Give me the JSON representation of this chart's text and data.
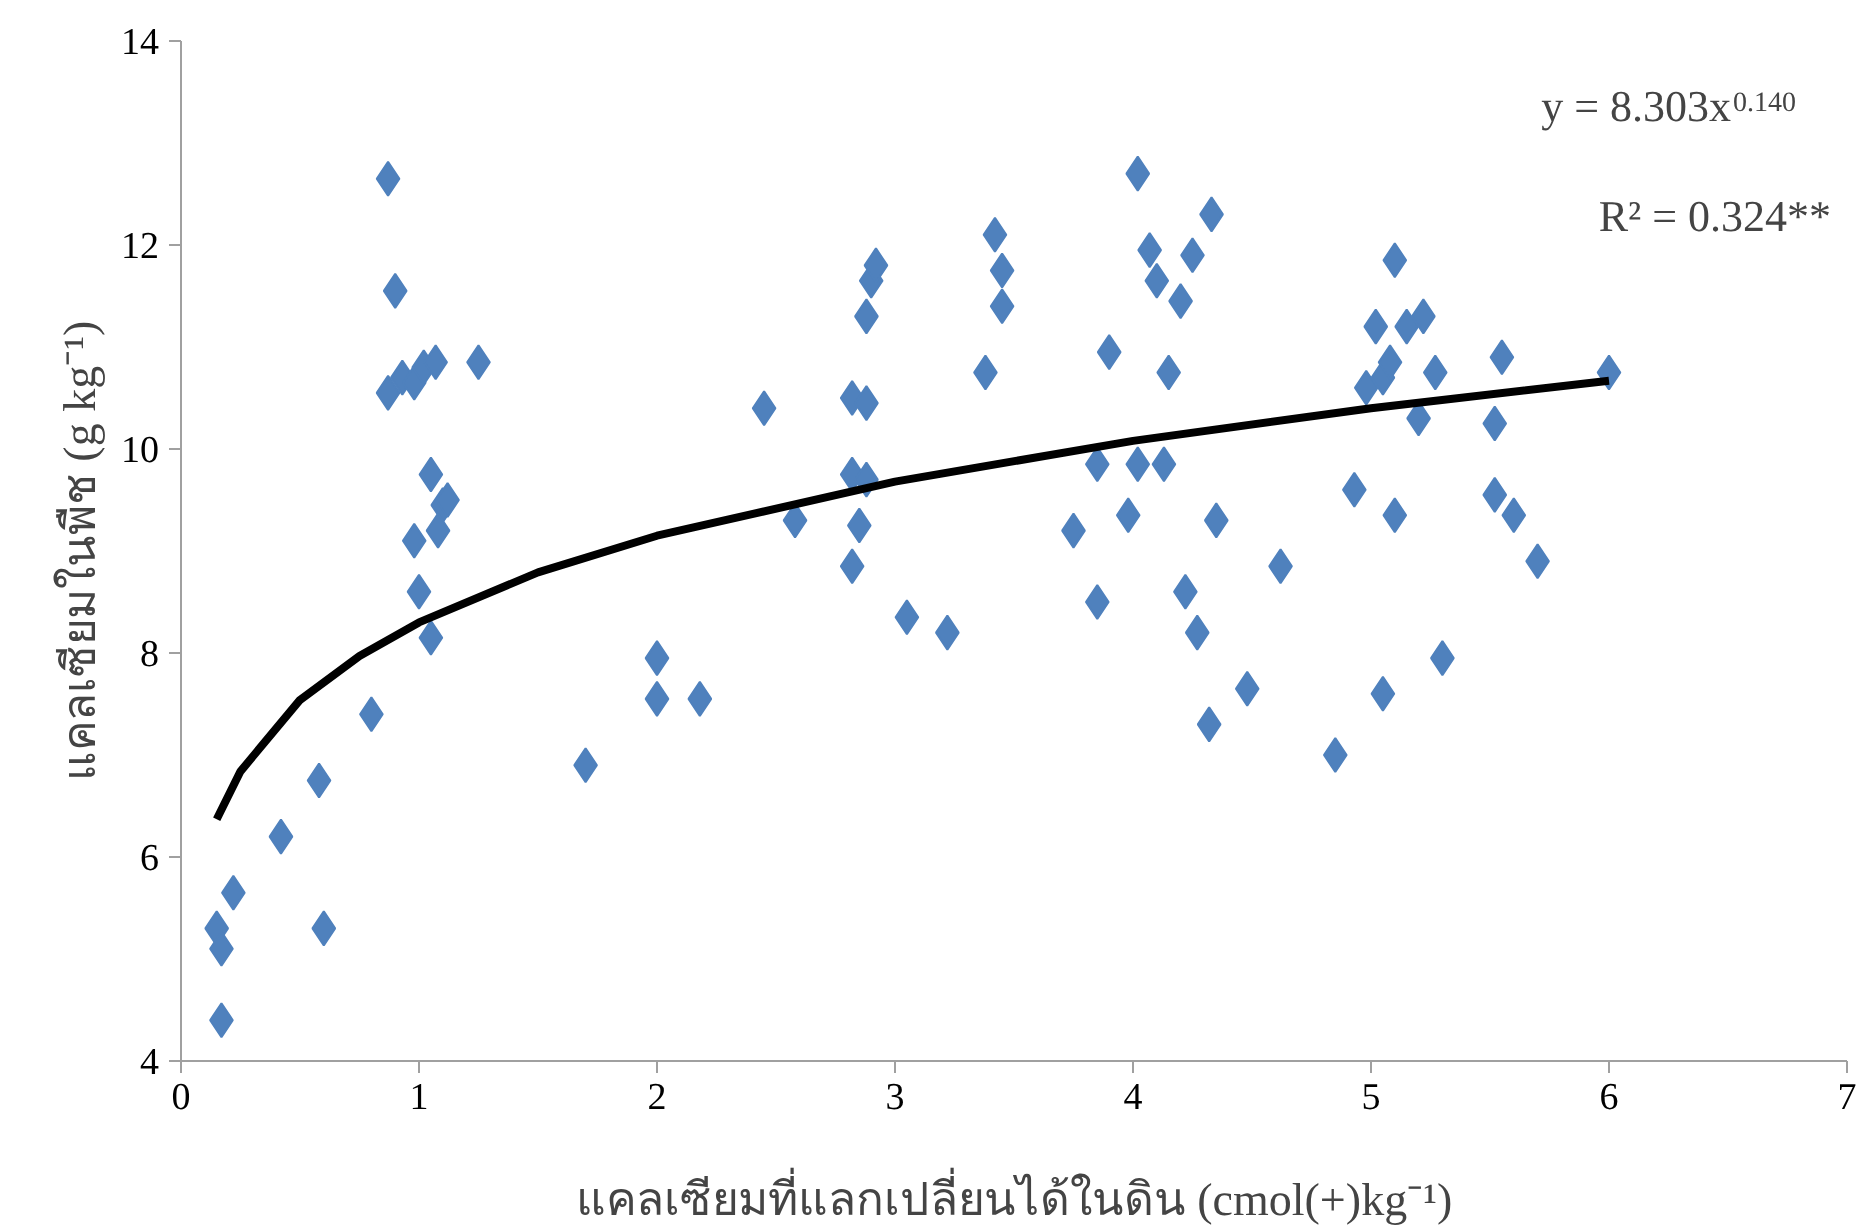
{
  "chart_data": {
    "type": "scatter",
    "xlabel": "แคลเซียมที่แลกเปลี่ยนได้ในดิน (cmol(+)kg⁻¹)",
    "ylabel": "แคลเซียมในพืช (g kg⁻¹)",
    "xlim": [
      0,
      7
    ],
    "xticks": [
      0,
      1,
      2,
      3,
      4,
      5,
      6,
      7
    ],
    "ylim": [
      4,
      14
    ],
    "yticks": [
      4,
      6,
      8,
      10,
      12,
      14
    ],
    "grid": false,
    "marker": "diamond",
    "annotations": [
      "y = 8.303x$^{0.140}$",
      "R² = 0.324**"
    ],
    "series": [
      {
        "color": "#4f81bd",
        "x": [
          0.15,
          0.17,
          0.17,
          0.22,
          0.42,
          0.58,
          0.6,
          0.8,
          0.87,
          0.9,
          0.87,
          0.93,
          0.98,
          1.02,
          1.07,
          1.25,
          1.05,
          1.1,
          1.12,
          1.08,
          0.98,
          1.0,
          1.05,
          1.7,
          2.0,
          2.0,
          2.18,
          2.45,
          2.58,
          2.82,
          2.88,
          2.82,
          2.88,
          2.85,
          2.82,
          2.88,
          2.9,
          2.92,
          3.05,
          3.22,
          3.38,
          3.42,
          3.45,
          3.45,
          3.75,
          3.85,
          3.85,
          3.9,
          3.98,
          4.02,
          4.02,
          4.07,
          4.1,
          4.15,
          4.13,
          4.2,
          4.25,
          4.22,
          4.27,
          4.32,
          4.33,
          4.35,
          4.48,
          4.62,
          4.85,
          4.93,
          4.98,
          5.02,
          5.05,
          5.05,
          5.08,
          5.1,
          5.1,
          5.15,
          5.22,
          5.2,
          5.27,
          5.3,
          5.52,
          5.52,
          5.55,
          5.6,
          5.7,
          6.0
        ],
        "values": [
          5.3,
          5.1,
          4.4,
          5.65,
          6.2,
          6.75,
          5.3,
          7.4,
          12.65,
          11.55,
          10.55,
          10.7,
          10.65,
          10.8,
          10.85,
          10.85,
          9.75,
          9.45,
          9.5,
          9.2,
          9.1,
          8.6,
          8.15,
          6.9,
          7.95,
          7.55,
          7.55,
          10.4,
          9.3,
          10.5,
          10.45,
          9.75,
          9.7,
          9.25,
          8.85,
          11.3,
          11.65,
          11.8,
          8.35,
          8.2,
          10.75,
          12.1,
          11.75,
          11.4,
          9.2,
          9.85,
          8.5,
          10.95,
          9.35,
          12.7,
          9.85,
          11.95,
          11.65,
          10.75,
          9.85,
          11.45,
          11.9,
          8.6,
          8.2,
          7.3,
          12.3,
          9.3,
          7.65,
          8.85,
          7.0,
          9.6,
          10.6,
          11.2,
          10.7,
          7.6,
          10.85,
          11.85,
          9.35,
          11.2,
          11.3,
          10.3,
          10.75,
          7.95,
          10.25,
          9.55,
          10.9,
          9.35,
          8.9,
          10.75
        ]
      },
      {
        "type": "line",
        "color": "#000000",
        "marker": "none",
        "line_style": "solid",
        "x": [
          0.15,
          0.25,
          0.5,
          0.75,
          1,
          1.5,
          2,
          3,
          4,
          5,
          6
        ],
        "values": [
          6.37,
          6.84,
          7.54,
          7.97,
          8.3,
          8.79,
          9.15,
          9.68,
          10.08,
          10.4,
          10.67
        ]
      }
    ]
  }
}
